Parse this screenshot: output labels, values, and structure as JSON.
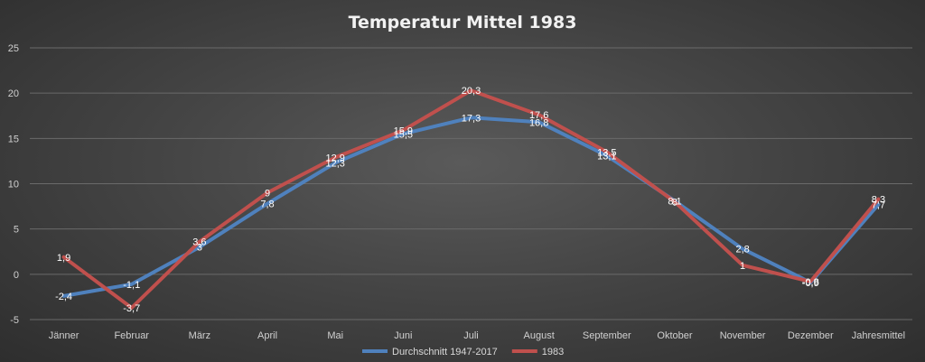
{
  "chart_data": {
    "type": "line",
    "title": "Temperatur Mittel 1983",
    "xlabel": "",
    "ylabel": "",
    "ylim": [
      -5,
      25
    ],
    "yticks": [
      -5,
      0,
      5,
      10,
      15,
      20,
      25
    ],
    "grid": true,
    "legend_position": "bottom",
    "categories": [
      "Jänner",
      "Februar",
      "März",
      "April",
      "Mai",
      "Juni",
      "Juli",
      "August",
      "September",
      "Oktober",
      "November",
      "Dezember",
      "Jahresmittel"
    ],
    "series": [
      {
        "name": "Durchschnitt 1947-2017",
        "color": "#4f81bd",
        "values": [
          -2.4,
          -1.1,
          3,
          7.8,
          12.3,
          15.5,
          17.3,
          16.8,
          13.1,
          8.1,
          2.8,
          -0.9,
          7.7
        ],
        "labels": [
          "-2,4",
          "-1,1",
          "3",
          "7,8",
          "12,3",
          "15,5",
          "17,3",
          "16,8",
          "13,1",
          "8,1",
          "2,8",
          "-0,9",
          "7,7"
        ]
      },
      {
        "name": "1983",
        "color": "#c0504d",
        "values": [
          1.9,
          -3.7,
          3.6,
          9,
          12.9,
          15.9,
          20.3,
          17.6,
          13.5,
          8,
          1,
          -0.8,
          8.3
        ],
        "labels": [
          "1,9",
          "-3,7",
          "3,6",
          "9",
          "12,9",
          "15,9",
          "20,3",
          "17,6",
          "13,5",
          "8",
          "1",
          "-0,8",
          "8,3"
        ]
      }
    ]
  }
}
